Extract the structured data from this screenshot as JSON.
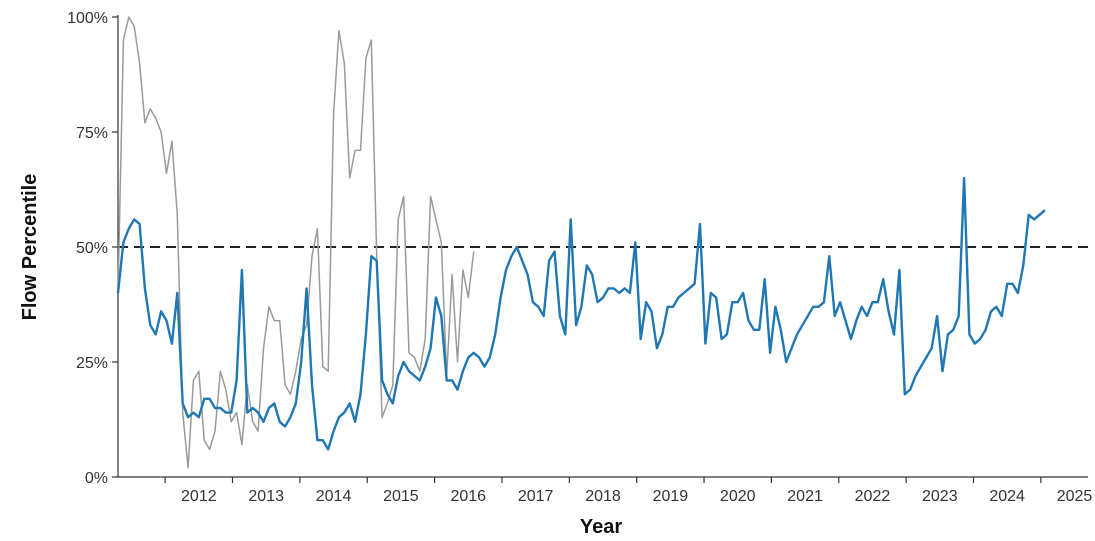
{
  "chart_data": {
    "type": "line",
    "xlabel": "Year",
    "ylabel": "Flow Percentile",
    "xlim": [
      2011.3,
      2025.7
    ],
    "ylim": [
      0,
      100
    ],
    "x_ticks": [
      "2012",
      "2013",
      "2014",
      "2015",
      "2016",
      "2017",
      "2018",
      "2019",
      "2020",
      "2021",
      "2022",
      "2023",
      "2024",
      "2025"
    ],
    "y_ticks": [
      {
        "value": 0,
        "label": "0%"
      },
      {
        "value": 25,
        "label": "25%"
      },
      {
        "value": 50,
        "label": "50%"
      },
      {
        "value": 75,
        "label": "75%"
      },
      {
        "value": 100,
        "label": "100%"
      }
    ],
    "reference_line": {
      "value": 50,
      "style": "dashed",
      "color": "#222222"
    },
    "grid": false,
    "series": [
      {
        "color": "#9a9a9a",
        "points": [
          [
            2011.3,
            40
          ],
          [
            2011.38,
            95
          ],
          [
            2011.46,
            100
          ],
          [
            2011.54,
            98
          ],
          [
            2011.62,
            90
          ],
          [
            2011.7,
            77
          ],
          [
            2011.78,
            80
          ],
          [
            2011.86,
            78
          ],
          [
            2011.94,
            75
          ],
          [
            2012.02,
            66
          ],
          [
            2012.1,
            73
          ],
          [
            2012.18,
            57
          ],
          [
            2012.26,
            14
          ],
          [
            2012.34,
            2
          ],
          [
            2012.42,
            21
          ],
          [
            2012.5,
            23
          ],
          [
            2012.58,
            8
          ],
          [
            2012.66,
            6
          ],
          [
            2012.74,
            10
          ],
          [
            2012.82,
            23
          ],
          [
            2012.9,
            19
          ],
          [
            2012.98,
            12
          ],
          [
            2013.06,
            14
          ],
          [
            2013.14,
            7
          ],
          [
            2013.22,
            20
          ],
          [
            2013.3,
            12
          ],
          [
            2013.38,
            10
          ],
          [
            2013.46,
            28
          ],
          [
            2013.54,
            37
          ],
          [
            2013.62,
            34
          ],
          [
            2013.7,
            34
          ],
          [
            2013.78,
            20
          ],
          [
            2013.86,
            18
          ],
          [
            2013.94,
            23
          ],
          [
            2014.02,
            30
          ],
          [
            2014.1,
            33
          ],
          [
            2014.18,
            48
          ],
          [
            2014.26,
            54
          ],
          [
            2014.34,
            24
          ],
          [
            2014.42,
            23
          ],
          [
            2014.5,
            79
          ],
          [
            2014.58,
            97
          ],
          [
            2014.66,
            90
          ],
          [
            2014.74,
            65
          ],
          [
            2014.82,
            71
          ],
          [
            2014.9,
            71
          ],
          [
            2014.98,
            91
          ],
          [
            2015.06,
            95
          ],
          [
            2015.14,
            48
          ],
          [
            2015.22,
            13
          ],
          [
            2015.3,
            16
          ],
          [
            2015.38,
            20
          ],
          [
            2015.46,
            56
          ],
          [
            2015.54,
            61
          ],
          [
            2015.62,
            27
          ],
          [
            2015.7,
            26
          ],
          [
            2015.78,
            23
          ],
          [
            2015.86,
            30
          ],
          [
            2015.94,
            61
          ],
          [
            2016.02,
            56
          ],
          [
            2016.1,
            51
          ],
          [
            2016.18,
            22
          ],
          [
            2016.26,
            44
          ],
          [
            2016.34,
            25
          ],
          [
            2016.42,
            45
          ],
          [
            2016.5,
            39
          ],
          [
            2016.58,
            49
          ]
        ]
      },
      {
        "color": "#1f77b4",
        "points": [
          [
            2011.3,
            40
          ],
          [
            2011.38,
            51
          ],
          [
            2011.46,
            54
          ],
          [
            2011.54,
            56
          ],
          [
            2011.62,
            55
          ],
          [
            2011.7,
            41
          ],
          [
            2011.78,
            33
          ],
          [
            2011.86,
            31
          ],
          [
            2011.94,
            36
          ],
          [
            2012.02,
            34
          ],
          [
            2012.1,
            29
          ],
          [
            2012.18,
            40
          ],
          [
            2012.26,
            16
          ],
          [
            2012.34,
            13
          ],
          [
            2012.42,
            14
          ],
          [
            2012.5,
            13
          ],
          [
            2012.58,
            17
          ],
          [
            2012.66,
            17
          ],
          [
            2012.74,
            15
          ],
          [
            2012.82,
            15
          ],
          [
            2012.9,
            14
          ],
          [
            2012.98,
            14
          ],
          [
            2013.06,
            21
          ],
          [
            2013.14,
            45
          ],
          [
            2013.22,
            14
          ],
          [
            2013.3,
            15
          ],
          [
            2013.38,
            14
          ],
          [
            2013.46,
            12
          ],
          [
            2013.54,
            15
          ],
          [
            2013.62,
            16
          ],
          [
            2013.7,
            12
          ],
          [
            2013.78,
            11
          ],
          [
            2013.86,
            13
          ],
          [
            2013.94,
            16
          ],
          [
            2014.02,
            25
          ],
          [
            2014.1,
            41
          ],
          [
            2014.18,
            20
          ],
          [
            2014.26,
            8
          ],
          [
            2014.34,
            8
          ],
          [
            2014.42,
            6
          ],
          [
            2014.5,
            10
          ],
          [
            2014.58,
            13
          ],
          [
            2014.66,
            14
          ],
          [
            2014.74,
            16
          ],
          [
            2014.82,
            12
          ],
          [
            2014.9,
            18
          ],
          [
            2014.98,
            31
          ],
          [
            2015.06,
            48
          ],
          [
            2015.14,
            47
          ],
          [
            2015.22,
            21
          ],
          [
            2015.3,
            18
          ],
          [
            2015.38,
            16
          ],
          [
            2015.46,
            22
          ],
          [
            2015.54,
            25
          ],
          [
            2015.62,
            23
          ],
          [
            2015.7,
            22
          ],
          [
            2015.78,
            21
          ],
          [
            2015.86,
            24
          ],
          [
            2015.94,
            28
          ],
          [
            2016.02,
            39
          ],
          [
            2016.1,
            35
          ],
          [
            2016.18,
            21
          ],
          [
            2016.26,
            21
          ],
          [
            2016.34,
            19
          ],
          [
            2016.42,
            23
          ],
          [
            2016.5,
            26
          ],
          [
            2016.58,
            27
          ],
          [
            2016.66,
            26
          ],
          [
            2016.74,
            24
          ],
          [
            2016.82,
            26
          ],
          [
            2016.9,
            31
          ],
          [
            2016.98,
            39
          ],
          [
            2017.06,
            45
          ],
          [
            2017.14,
            48
          ],
          [
            2017.22,
            50
          ],
          [
            2017.3,
            47
          ],
          [
            2017.38,
            44
          ],
          [
            2017.46,
            38
          ],
          [
            2017.54,
            37
          ],
          [
            2017.62,
            35
          ],
          [
            2017.7,
            47
          ],
          [
            2017.78,
            49
          ],
          [
            2017.86,
            35
          ],
          [
            2017.94,
            31
          ],
          [
            2018.02,
            56
          ],
          [
            2018.1,
            33
          ],
          [
            2018.18,
            37
          ],
          [
            2018.26,
            46
          ],
          [
            2018.34,
            44
          ],
          [
            2018.42,
            38
          ],
          [
            2018.5,
            39
          ],
          [
            2018.58,
            41
          ],
          [
            2018.66,
            41
          ],
          [
            2018.74,
            40
          ],
          [
            2018.82,
            41
          ],
          [
            2018.9,
            40
          ],
          [
            2018.98,
            51
          ],
          [
            2019.06,
            30
          ],
          [
            2019.14,
            38
          ],
          [
            2019.22,
            36
          ],
          [
            2019.3,
            28
          ],
          [
            2019.38,
            31
          ],
          [
            2019.46,
            37
          ],
          [
            2019.54,
            37
          ],
          [
            2019.62,
            39
          ],
          [
            2019.7,
            40
          ],
          [
            2019.78,
            41
          ],
          [
            2019.86,
            42
          ],
          [
            2019.94,
            55
          ],
          [
            2020.02,
            29
          ],
          [
            2020.1,
            40
          ],
          [
            2020.18,
            39
          ],
          [
            2020.26,
            30
          ],
          [
            2020.34,
            31
          ],
          [
            2020.42,
            38
          ],
          [
            2020.5,
            38
          ],
          [
            2020.58,
            40
          ],
          [
            2020.66,
            34
          ],
          [
            2020.74,
            32
          ],
          [
            2020.82,
            32
          ],
          [
            2020.9,
            43
          ],
          [
            2020.98,
            27
          ],
          [
            2021.06,
            37
          ],
          [
            2021.14,
            32
          ],
          [
            2021.22,
            25
          ],
          [
            2021.3,
            28
          ],
          [
            2021.38,
            31
          ],
          [
            2021.46,
            33
          ],
          [
            2021.54,
            35
          ],
          [
            2021.62,
            37
          ],
          [
            2021.7,
            37
          ],
          [
            2021.78,
            38
          ],
          [
            2021.86,
            48
          ],
          [
            2021.94,
            35
          ],
          [
            2022.02,
            38
          ],
          [
            2022.1,
            34
          ],
          [
            2022.18,
            30
          ],
          [
            2022.26,
            34
          ],
          [
            2022.34,
            37
          ],
          [
            2022.42,
            35
          ],
          [
            2022.5,
            38
          ],
          [
            2022.58,
            38
          ],
          [
            2022.66,
            43
          ],
          [
            2022.74,
            36
          ],
          [
            2022.82,
            31
          ],
          [
            2022.9,
            45
          ],
          [
            2022.98,
            18
          ],
          [
            2023.06,
            19
          ],
          [
            2023.14,
            22
          ],
          [
            2023.22,
            24
          ],
          [
            2023.3,
            26
          ],
          [
            2023.38,
            28
          ],
          [
            2023.46,
            35
          ],
          [
            2023.54,
            23
          ],
          [
            2023.62,
            31
          ],
          [
            2023.7,
            32
          ],
          [
            2023.78,
            35
          ],
          [
            2023.86,
            65
          ],
          [
            2023.94,
            31
          ],
          [
            2024.02,
            29
          ],
          [
            2024.1,
            30
          ],
          [
            2024.18,
            32
          ],
          [
            2024.26,
            36
          ],
          [
            2024.34,
            37
          ],
          [
            2024.42,
            35
          ],
          [
            2024.5,
            42
          ],
          [
            2024.58,
            42
          ],
          [
            2024.66,
            40
          ],
          [
            2024.74,
            46
          ],
          [
            2024.82,
            57
          ],
          [
            2024.9,
            56
          ],
          [
            2024.98,
            57
          ],
          [
            2025.06,
            58
          ]
        ]
      }
    ]
  }
}
